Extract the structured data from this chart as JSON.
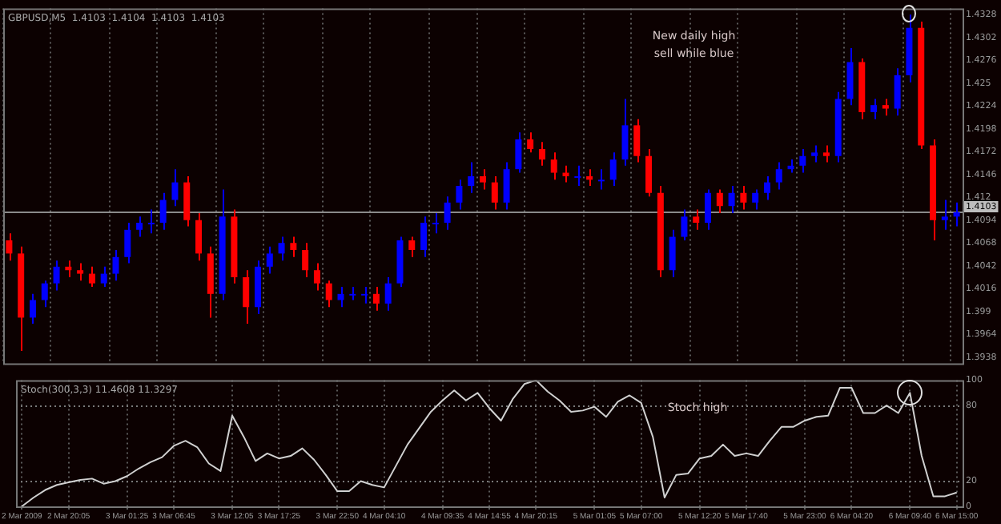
{
  "chart_data": [
    {
      "type": "candlestick",
      "title": "GBPUSD,M5  1.4103  1.4104  1.4103  1.4103",
      "tick_labels": "y",
      "grid": "x",
      "ylim": [
        1.3931,
        1.4335
      ],
      "yticks": [
        1.4328,
        1.4302,
        1.4276,
        1.425,
        1.4224,
        1.4198,
        1.4172,
        1.4146,
        1.412,
        1.4094,
        1.4068,
        1.4042,
        1.4016,
        1.399,
        1.3964,
        1.3938
      ],
      "annotations": [
        "New daily high",
        "sell while blue"
      ],
      "ref_lines": [
        {
          "axis": "y",
          "value": 1.4103,
          "label": "1.4103",
          "color": "#8a8a8a"
        }
      ],
      "categories": [
        null,
        null,
        null,
        null,
        null,
        null,
        null,
        null,
        null,
        null,
        null,
        null,
        null,
        null,
        null,
        null,
        null,
        null,
        null,
        null,
        null,
        null,
        null,
        null,
        null,
        null,
        null,
        null,
        null,
        null,
        null,
        null,
        null,
        null,
        null,
        null,
        null,
        null,
        null,
        null,
        null,
        null,
        null,
        null,
        null,
        null,
        null,
        null,
        null,
        null,
        null,
        null,
        null,
        null,
        null,
        null,
        null,
        null,
        null,
        null,
        null,
        null,
        null,
        null,
        null,
        null,
        null,
        null,
        null,
        null,
        null,
        null,
        null,
        null,
        null,
        null,
        null,
        null,
        null,
        null,
        null
      ],
      "ohlc": [
        [
          1.4071,
          1.4079,
          1.4048,
          1.4056
        ],
        [
          1.4056,
          1.4064,
          1.3945,
          1.3983
        ],
        [
          1.3983,
          1.401,
          1.3976,
          1.4003
        ],
        [
          1.4003,
          1.4025,
          1.3995,
          1.4022
        ],
        [
          1.4022,
          1.4048,
          1.4014,
          1.4041
        ],
        [
          1.4041,
          1.4048,
          1.4029,
          1.4037
        ],
        [
          1.4037,
          1.4045,
          1.4025,
          1.4033
        ],
        [
          1.4033,
          1.4041,
          1.4018,
          1.4022
        ],
        [
          1.4022,
          1.4041,
          1.4018,
          1.4033
        ],
        [
          1.4033,
          1.406,
          1.4025,
          1.4052
        ],
        [
          1.4052,
          1.4091,
          1.4045,
          1.4083
        ],
        [
          1.4083,
          1.4098,
          1.4075,
          1.4091
        ],
        [
          1.4091,
          1.4106,
          1.4079,
          1.4091
        ],
        [
          1.4091,
          1.4125,
          1.4083,
          1.4117
        ],
        [
          1.4117,
          1.4152,
          1.411,
          1.4137
        ],
        [
          1.4137,
          1.4144,
          1.4087,
          1.4094
        ],
        [
          1.4094,
          1.4102,
          1.4048,
          1.4056
        ],
        [
          1.4056,
          1.4064,
          1.3983,
          1.401
        ],
        [
          1.401,
          1.4129,
          1.4003,
          1.4098
        ],
        [
          1.4098,
          1.4106,
          1.4022,
          1.4029
        ],
        [
          1.4029,
          1.4037,
          1.3976,
          1.3995
        ],
        [
          1.3995,
          1.4048,
          1.3987,
          1.4041
        ],
        [
          1.4041,
          1.4064,
          1.4033,
          1.4056
        ],
        [
          1.4056,
          1.4075,
          1.4048,
          1.4068
        ],
        [
          1.4068,
          1.4075,
          1.4052,
          1.406
        ],
        [
          1.406,
          1.4068,
          1.4029,
          1.4037
        ],
        [
          1.4037,
          1.4045,
          1.4014,
          1.4022
        ],
        [
          1.4022,
          1.4025,
          1.3995,
          1.4003
        ],
        [
          1.4003,
          1.4018,
          1.3995,
          1.401
        ],
        [
          1.401,
          1.4018,
          1.4003,
          1.401
        ],
        [
          1.401,
          1.4018,
          1.3999,
          1.401
        ],
        [
          1.401,
          1.4018,
          1.3991,
          1.3999
        ],
        [
          1.3999,
          1.4029,
          1.3991,
          1.4022
        ],
        [
          1.4022,
          1.4075,
          1.4018,
          1.4071
        ],
        [
          1.4071,
          1.4075,
          1.4052,
          1.406
        ],
        [
          1.406,
          1.4098,
          1.4052,
          1.4091
        ],
        [
          1.4091,
          1.4102,
          1.4079,
          1.4091
        ],
        [
          1.4091,
          1.4121,
          1.4083,
          1.4114
        ],
        [
          1.4114,
          1.414,
          1.4106,
          1.4133
        ],
        [
          1.4133,
          1.416,
          1.4125,
          1.4144
        ],
        [
          1.4144,
          1.4152,
          1.4129,
          1.4137
        ],
        [
          1.4137,
          1.4144,
          1.4106,
          1.4114
        ],
        [
          1.4114,
          1.416,
          1.4106,
          1.4152
        ],
        [
          1.4152,
          1.4194,
          1.4148,
          1.4186
        ],
        [
          1.4186,
          1.4194,
          1.4171,
          1.4175
        ],
        [
          1.4175,
          1.4183,
          1.4156,
          1.4163
        ],
        [
          1.4163,
          1.4171,
          1.414,
          1.4148
        ],
        [
          1.4148,
          1.4156,
          1.4137,
          1.4144
        ],
        [
          1.4144,
          1.4156,
          1.4133,
          1.4144
        ],
        [
          1.4144,
          1.4152,
          1.4133,
          1.414
        ],
        [
          1.414,
          1.4152,
          1.4129,
          1.414
        ],
        [
          1.414,
          1.4171,
          1.4133,
          1.4163
        ],
        [
          1.4163,
          1.4232,
          1.4156,
          1.4202
        ],
        [
          1.4202,
          1.4209,
          1.416,
          1.4167
        ],
        [
          1.4167,
          1.4175,
          1.4121,
          1.4125
        ],
        [
          1.4125,
          1.4133,
          1.4029,
          1.4037
        ],
        [
          1.4037,
          1.4083,
          1.4029,
          1.4075
        ],
        [
          1.4075,
          1.4106,
          1.4071,
          1.4098
        ],
        [
          1.4098,
          1.4106,
          1.4083,
          1.4091
        ],
        [
          1.4091,
          1.4129,
          1.4083,
          1.4125
        ],
        [
          1.4125,
          1.4129,
          1.4102,
          1.411
        ],
        [
          1.411,
          1.4133,
          1.4102,
          1.4125
        ],
        [
          1.4125,
          1.4133,
          1.4106,
          1.4114
        ],
        [
          1.4114,
          1.4129,
          1.4106,
          1.4125
        ],
        [
          1.4125,
          1.4144,
          1.4117,
          1.4137
        ],
        [
          1.4137,
          1.416,
          1.4129,
          1.4152
        ],
        [
          1.4152,
          1.4163,
          1.4148,
          1.4156
        ],
        [
          1.4156,
          1.4175,
          1.4148,
          1.4167
        ],
        [
          1.4167,
          1.4179,
          1.416,
          1.4171
        ],
        [
          1.4171,
          1.4179,
          1.416,
          1.4167
        ],
        [
          1.4167,
          1.424,
          1.416,
          1.4232
        ],
        [
          1.4232,
          1.429,
          1.4225,
          1.4274
        ],
        [
          1.4274,
          1.4278,
          1.4209,
          1.4217
        ],
        [
          1.4217,
          1.4232,
          1.4209,
          1.4225
        ],
        [
          1.4225,
          1.4232,
          1.4213,
          1.4221
        ],
        [
          1.4221,
          1.4267,
          1.4213,
          1.4259
        ],
        [
          1.4259,
          1.4328,
          1.4251,
          1.4313
        ],
        [
          1.4313,
          1.432,
          1.4175,
          1.4179
        ],
        [
          1.4179,
          1.4186,
          1.4071,
          1.4094
        ],
        [
          1.4094,
          1.4117,
          1.4083,
          1.4098
        ],
        [
          1.4098,
          1.4114,
          1.4087,
          1.4103
        ]
      ],
      "colors": [
        "#ff0000",
        "#ff0000",
        "#0000ff",
        "#0000ff",
        "#0000ff",
        "#ff0000",
        "#ff0000",
        "#ff0000",
        "#0000ff",
        "#0000ff",
        "#0000ff",
        "#0000ff",
        "#0000ff",
        "#0000ff",
        "#0000ff",
        "#ff0000",
        "#ff0000",
        "#ff0000",
        "#0000ff",
        "#ff0000",
        "#ff0000",
        "#0000ff",
        "#0000ff",
        "#0000ff",
        "#ff0000",
        "#ff0000",
        "#ff0000",
        "#ff0000",
        "#0000ff",
        "#0000ff",
        "#0000ff",
        "#ff0000",
        "#0000ff",
        "#0000ff",
        "#ff0000",
        "#0000ff",
        "#0000ff",
        "#0000ff",
        "#0000ff",
        "#0000ff",
        "#ff0000",
        "#ff0000",
        "#0000ff",
        "#0000ff",
        "#ff0000",
        "#ff0000",
        "#ff0000",
        "#ff0000",
        "#0000ff",
        "#ff0000",
        "#0000ff",
        "#0000ff",
        "#0000ff",
        "#ff0000",
        "#ff0000",
        "#ff0000",
        "#0000ff",
        "#0000ff",
        "#ff0000",
        "#0000ff",
        "#ff0000",
        "#0000ff",
        "#ff0000",
        "#0000ff",
        "#0000ff",
        "#0000ff",
        "#0000ff",
        "#0000ff",
        "#0000ff",
        "#ff0000",
        "#0000ff",
        "#0000ff",
        "#ff0000",
        "#0000ff",
        "#ff0000",
        "#0000ff",
        "#0000ff",
        "#ff0000",
        "#ff0000",
        "#0000ff",
        "#0000ff"
      ]
    },
    {
      "type": "line",
      "title": "Stoch(300,3,3) 11.4608 11.3297",
      "grid": "x",
      "ylim": [
        0,
        100
      ],
      "yticks": [
        0,
        20,
        80,
        100
      ],
      "annotations": [
        "Stoch high"
      ],
      "ref_lines": [
        {
          "axis": "y",
          "value": 20,
          "color": "#7a7a7a",
          "line_style": "dotted"
        },
        {
          "axis": "y",
          "value": 80,
          "color": "#7a7a7a",
          "line_style": "dotted"
        }
      ],
      "categories": [
        "2 Mar 2009",
        null,
        null,
        null,
        "2 Mar 20:05",
        null,
        null,
        null,
        null,
        "3 Mar 01:25",
        null,
        null,
        null,
        "3 Mar 06:45",
        null,
        null,
        null,
        null,
        "3 Mar 12:05",
        null,
        null,
        null,
        "3 Mar 17:25",
        null,
        null,
        null,
        null,
        "3 Mar 22:50",
        null,
        null,
        null,
        "4 Mar 04:10",
        null,
        null,
        null,
        null,
        "4 Mar 09:35",
        null,
        null,
        null,
        "4 Mar 14:55",
        null,
        null,
        null,
        "4 Mar 20:15",
        null,
        null,
        null,
        null,
        "5 Mar 01:05",
        null,
        null,
        null,
        "5 Mar 07:00",
        null,
        null,
        null,
        null,
        "5 Mar 12:20",
        null,
        null,
        null,
        "5 Mar 17:40",
        null,
        null,
        null,
        null,
        "5 Mar 23:00",
        null,
        null,
        null,
        "6 Mar 04:20",
        null,
        null,
        null,
        null,
        "6 Mar 09:40",
        null,
        null,
        null,
        "6 Mar 15:00"
      ],
      "series": [
        {
          "color": "#d0d0d0",
          "values": [
            0,
            7,
            13,
            17,
            19,
            21,
            22,
            18,
            20,
            24,
            30,
            35,
            39,
            48,
            52,
            47,
            34,
            28,
            72,
            55,
            36,
            42,
            38,
            40,
            46,
            37,
            25,
            12,
            12,
            20,
            17,
            15,
            32,
            49,
            62,
            75,
            84,
            92,
            84,
            90,
            78,
            68,
            85,
            97,
            100,
            91,
            84,
            75,
            76,
            79,
            71,
            83,
            88,
            82,
            55,
            7,
            25,
            26,
            38,
            40,
            49,
            40,
            42,
            40,
            52,
            63,
            63,
            68,
            71,
            72,
            94,
            94,
            74,
            74,
            80,
            74,
            90,
            40,
            8,
            8,
            11
          ]
        }
      ]
    }
  ]
}
